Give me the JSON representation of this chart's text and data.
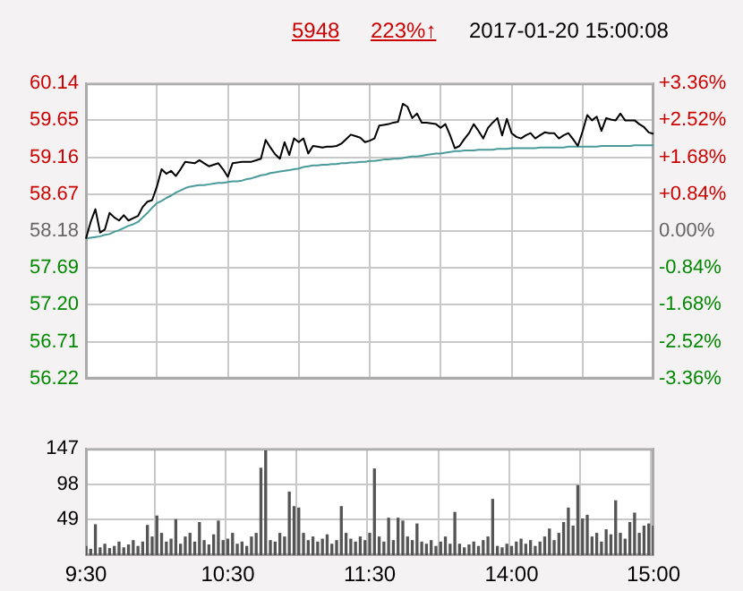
{
  "chart_data": [
    {
      "type": "line",
      "annotations": [
        "5948",
        "223%↑",
        "2017-01-20 15:00:08"
      ],
      "categories": [
        null,
        null,
        null,
        null,
        null,
        null,
        null,
        null,
        null,
        null,
        null,
        null,
        null,
        null,
        null,
        null,
        null,
        null,
        null,
        null,
        null,
        null,
        null,
        null,
        null,
        null,
        null,
        null,
        null,
        null,
        null,
        null,
        null,
        null,
        null,
        null,
        null,
        null,
        null,
        null,
        null,
        null,
        null,
        null,
        null,
        null,
        null,
        null,
        null,
        null,
        null,
        null,
        null,
        null,
        null,
        null,
        null,
        null,
        null,
        null,
        null,
        null,
        null,
        null,
        null,
        null,
        null,
        null,
        null,
        null,
        null,
        null,
        null,
        null,
        null,
        null,
        null,
        null,
        null,
        null,
        null,
        null,
        null,
        null,
        null,
        null,
        null,
        null,
        null,
        null,
        null,
        null,
        null,
        null,
        null,
        null,
        null,
        null,
        null,
        null,
        null,
        null,
        null,
        null,
        null,
        null,
        null,
        null,
        null,
        null,
        null,
        null,
        null,
        null,
        null,
        null,
        null,
        null,
        null,
        null,
        null
      ],
      "series": [
        {
          "color": "#000000",
          "values": [
            58.08,
            58.3,
            58.47,
            58.16,
            58.2,
            58.42,
            58.36,
            58.32,
            58.39,
            58.32,
            58.35,
            58.38,
            58.5,
            58.57,
            58.59,
            58.77,
            59.0,
            58.94,
            58.98,
            58.91,
            59.0,
            59.1,
            59.09,
            59.08,
            59.12,
            59.08,
            59.04,
            59.06,
            59.08,
            59.0,
            58.9,
            59.08,
            59.09,
            59.1,
            59.1,
            59.1,
            59.12,
            59.14,
            59.39,
            59.29,
            59.2,
            59.14,
            59.36,
            59.19,
            59.41,
            59.36,
            59.41,
            59.21,
            59.31,
            59.3,
            59.29,
            59.3,
            59.3,
            59.31,
            59.34,
            59.4,
            59.46,
            59.44,
            59.42,
            59.36,
            59.38,
            59.41,
            59.58,
            59.59,
            59.6,
            59.62,
            59.63,
            59.87,
            59.83,
            59.68,
            59.74,
            59.62,
            59.62,
            59.61,
            59.6,
            59.55,
            59.6,
            59.45,
            59.28,
            59.31,
            59.4,
            59.48,
            59.6,
            59.51,
            59.41,
            59.55,
            59.62,
            59.68,
            59.45,
            59.67,
            59.48,
            59.43,
            59.41,
            59.45,
            59.48,
            59.41,
            59.45,
            59.49,
            59.48,
            59.48,
            59.41,
            59.45,
            59.48,
            59.4,
            59.31,
            59.5,
            59.72,
            59.65,
            59.7,
            59.51,
            59.68,
            59.66,
            59.65,
            59.74,
            59.65,
            59.65,
            59.65,
            59.6,
            59.56,
            59.49,
            59.47
          ]
        },
        {
          "color": "#4a9a9a",
          "values": [
            58.08,
            58.09,
            58.1,
            58.11,
            58.13,
            58.14,
            58.17,
            58.19,
            58.22,
            58.25,
            58.27,
            58.3,
            58.36,
            58.42,
            58.49,
            58.55,
            58.58,
            58.62,
            58.65,
            58.69,
            58.72,
            58.75,
            58.77,
            58.78,
            58.79,
            58.79,
            58.8,
            58.81,
            58.82,
            58.82,
            58.83,
            58.84,
            58.84,
            58.85,
            58.87,
            58.88,
            58.9,
            58.92,
            58.93,
            58.95,
            58.96,
            58.97,
            58.98,
            58.99,
            59.0,
            59.01,
            59.03,
            59.04,
            59.05,
            59.05,
            59.06,
            59.06,
            59.07,
            59.07,
            59.08,
            59.08,
            59.09,
            59.09,
            59.1,
            59.1,
            59.11,
            59.11,
            59.12,
            59.13,
            59.13,
            59.14,
            59.14,
            59.15,
            59.16,
            59.17,
            59.17,
            59.18,
            59.19,
            59.2,
            59.21,
            59.21,
            59.22,
            59.23,
            59.24,
            59.24,
            59.25,
            59.25,
            59.25,
            59.26,
            59.26,
            59.26,
            59.26,
            59.27,
            59.27,
            59.27,
            59.28,
            59.28,
            59.28,
            59.28,
            59.28,
            59.28,
            59.29,
            59.29,
            59.29,
            59.29,
            59.29,
            59.29,
            59.3,
            59.3,
            59.3,
            59.3,
            59.3,
            59.3,
            59.3,
            59.31,
            59.31,
            59.31,
            59.31,
            59.31,
            59.31,
            59.31,
            59.32,
            59.32,
            59.32,
            59.32,
            59.32
          ]
        }
      ],
      "ylim": [
        56.22,
        60.14
      ],
      "yticks": [
        60.14,
        59.65,
        59.16,
        58.67,
        58.18,
        57.69,
        {
          "value": 57.2,
          "label": "57.20"
        },
        56.71,
        56.22
      ],
      "y2lim": [
        -3.36,
        3.36
      ],
      "y2ticks": [
        {
          "value": 3.36,
          "label": "+3.36%"
        },
        {
          "value": 2.52,
          "label": "+2.52%"
        },
        {
          "value": 1.68,
          "label": "+1.68%"
        },
        {
          "value": 0.84,
          "label": "+0.84%"
        },
        {
          "value": 0,
          "label": "0.00%"
        },
        {
          "value": -0.84,
          "label": "-0.84%"
        },
        {
          "value": -1.68,
          "label": "-1.68%"
        },
        {
          "value": -2.52,
          "label": "-2.52%"
        },
        {
          "value": -3.36,
          "label": "-3.36%"
        }
      ],
      "grid": true,
      "marker": "none",
      "line_style": "solid"
    },
    {
      "type": "bar",
      "color": "#555555",
      "categories": [
        "9:30",
        null,
        null,
        null,
        null,
        null,
        null,
        null,
        null,
        null,
        null,
        null,
        null,
        null,
        null,
        null,
        null,
        null,
        null,
        null,
        null,
        null,
        null,
        null,
        null,
        null,
        null,
        null,
        null,
        null,
        "10:30",
        null,
        null,
        null,
        null,
        null,
        null,
        null,
        null,
        null,
        null,
        null,
        null,
        null,
        null,
        null,
        null,
        null,
        null,
        null,
        null,
        null,
        null,
        null,
        null,
        null,
        null,
        null,
        null,
        null,
        "11:30",
        null,
        null,
        null,
        null,
        null,
        null,
        null,
        null,
        null,
        null,
        null,
        null,
        null,
        null,
        null,
        null,
        null,
        null,
        null,
        null,
        null,
        null,
        null,
        null,
        null,
        null,
        null,
        null,
        null,
        "14:00",
        null,
        null,
        null,
        null,
        null,
        null,
        null,
        null,
        null,
        null,
        null,
        null,
        null,
        null,
        null,
        null,
        null,
        null,
        null,
        null,
        null,
        null,
        null,
        null,
        null,
        null,
        null,
        null,
        null,
        "15:00"
      ],
      "values": [
        12,
        8,
        42,
        10,
        15,
        9,
        12,
        18,
        10,
        14,
        20,
        12,
        18,
        41,
        25,
        54,
        30,
        18,
        22,
        49,
        15,
        25,
        30,
        18,
        45,
        20,
        14,
        28,
        47,
        20,
        22,
        30,
        15,
        18,
        12,
        25,
        30,
        120,
        144,
        20,
        18,
        30,
        25,
        87,
        67,
        65,
        30,
        20,
        25,
        18,
        22,
        28,
        15,
        20,
        67,
        30,
        22,
        18,
        25,
        20,
        30,
        119,
        25,
        18,
        51,
        20,
        51,
        47,
        25,
        20,
        43,
        18,
        15,
        20,
        12,
        18,
        25,
        15,
        59,
        15,
        10,
        14,
        18,
        12,
        20,
        25,
        77,
        12,
        10,
        15,
        12,
        18,
        22,
        15,
        20,
        12,
        18,
        25,
        36,
        20,
        30,
        45,
        65,
        40,
        96,
        50,
        55,
        25,
        30,
        18,
        35,
        28,
        75,
        30,
        22,
        45,
        58,
        30,
        40,
        43,
        40
      ],
      "ylim": [
        0,
        147
      ],
      "yticks": [
        49,
        98,
        147
      ],
      "grid": true
    }
  ]
}
